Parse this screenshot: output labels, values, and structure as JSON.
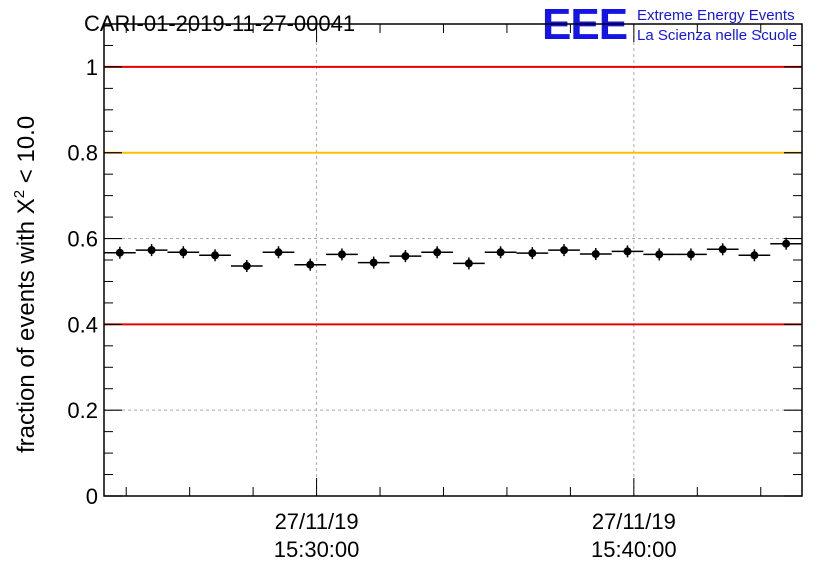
{
  "header": {
    "run_id": "CARI-01-2019-11-27-00041",
    "logo_text": "EEE",
    "logo_line1": "Extreme Energy Events",
    "logo_line2": "La Scienza nelle Scuole"
  },
  "chart_data": {
    "type": "scatter",
    "title": "CARI-01-2019-11-27-00041",
    "ylabel_prefix": "fraction of events with ",
    "ylabel_symbol": "X",
    "ylabel_superscript": "2",
    "ylabel_suffix": " < 10.0",
    "xlabel": "",
    "xlim_minutes": [
      23.3,
      45.3
    ],
    "ylim": [
      0,
      1.1
    ],
    "y_ticks": [
      0,
      0.2,
      0.4,
      0.6,
      0.8,
      1
    ],
    "y_tick_labels": [
      "0",
      "0.2",
      "0.4",
      "0.6",
      "0.8",
      "1"
    ],
    "x_ticks": [
      {
        "minute": 30,
        "date": "27/11/19",
        "time": "15:30:00"
      },
      {
        "minute": 40,
        "date": "27/11/19",
        "time": "15:40:00"
      }
    ],
    "reference_lines": [
      {
        "y": 1.0,
        "color": "#e60000"
      },
      {
        "y": 0.8,
        "color": "#ffbf00"
      },
      {
        "y": 0.4,
        "color": "#e60000"
      }
    ],
    "grid": true,
    "bin_width_minutes": 1,
    "series": [
      {
        "name": "fraction",
        "x_minutes": [
          23.8,
          24.8,
          25.8,
          26.8,
          27.8,
          28.8,
          29.8,
          30.8,
          31.8,
          32.8,
          33.8,
          34.8,
          35.8,
          36.8,
          37.8,
          38.8,
          39.8,
          40.8,
          41.8,
          42.8,
          43.8,
          44.8
        ],
        "values": [
          0.567,
          0.573,
          0.568,
          0.561,
          0.536,
          0.568,
          0.539,
          0.563,
          0.544,
          0.559,
          0.568,
          0.542,
          0.568,
          0.566,
          0.573,
          0.564,
          0.57,
          0.563,
          0.563,
          0.575,
          0.561,
          0.588
        ]
      }
    ]
  }
}
